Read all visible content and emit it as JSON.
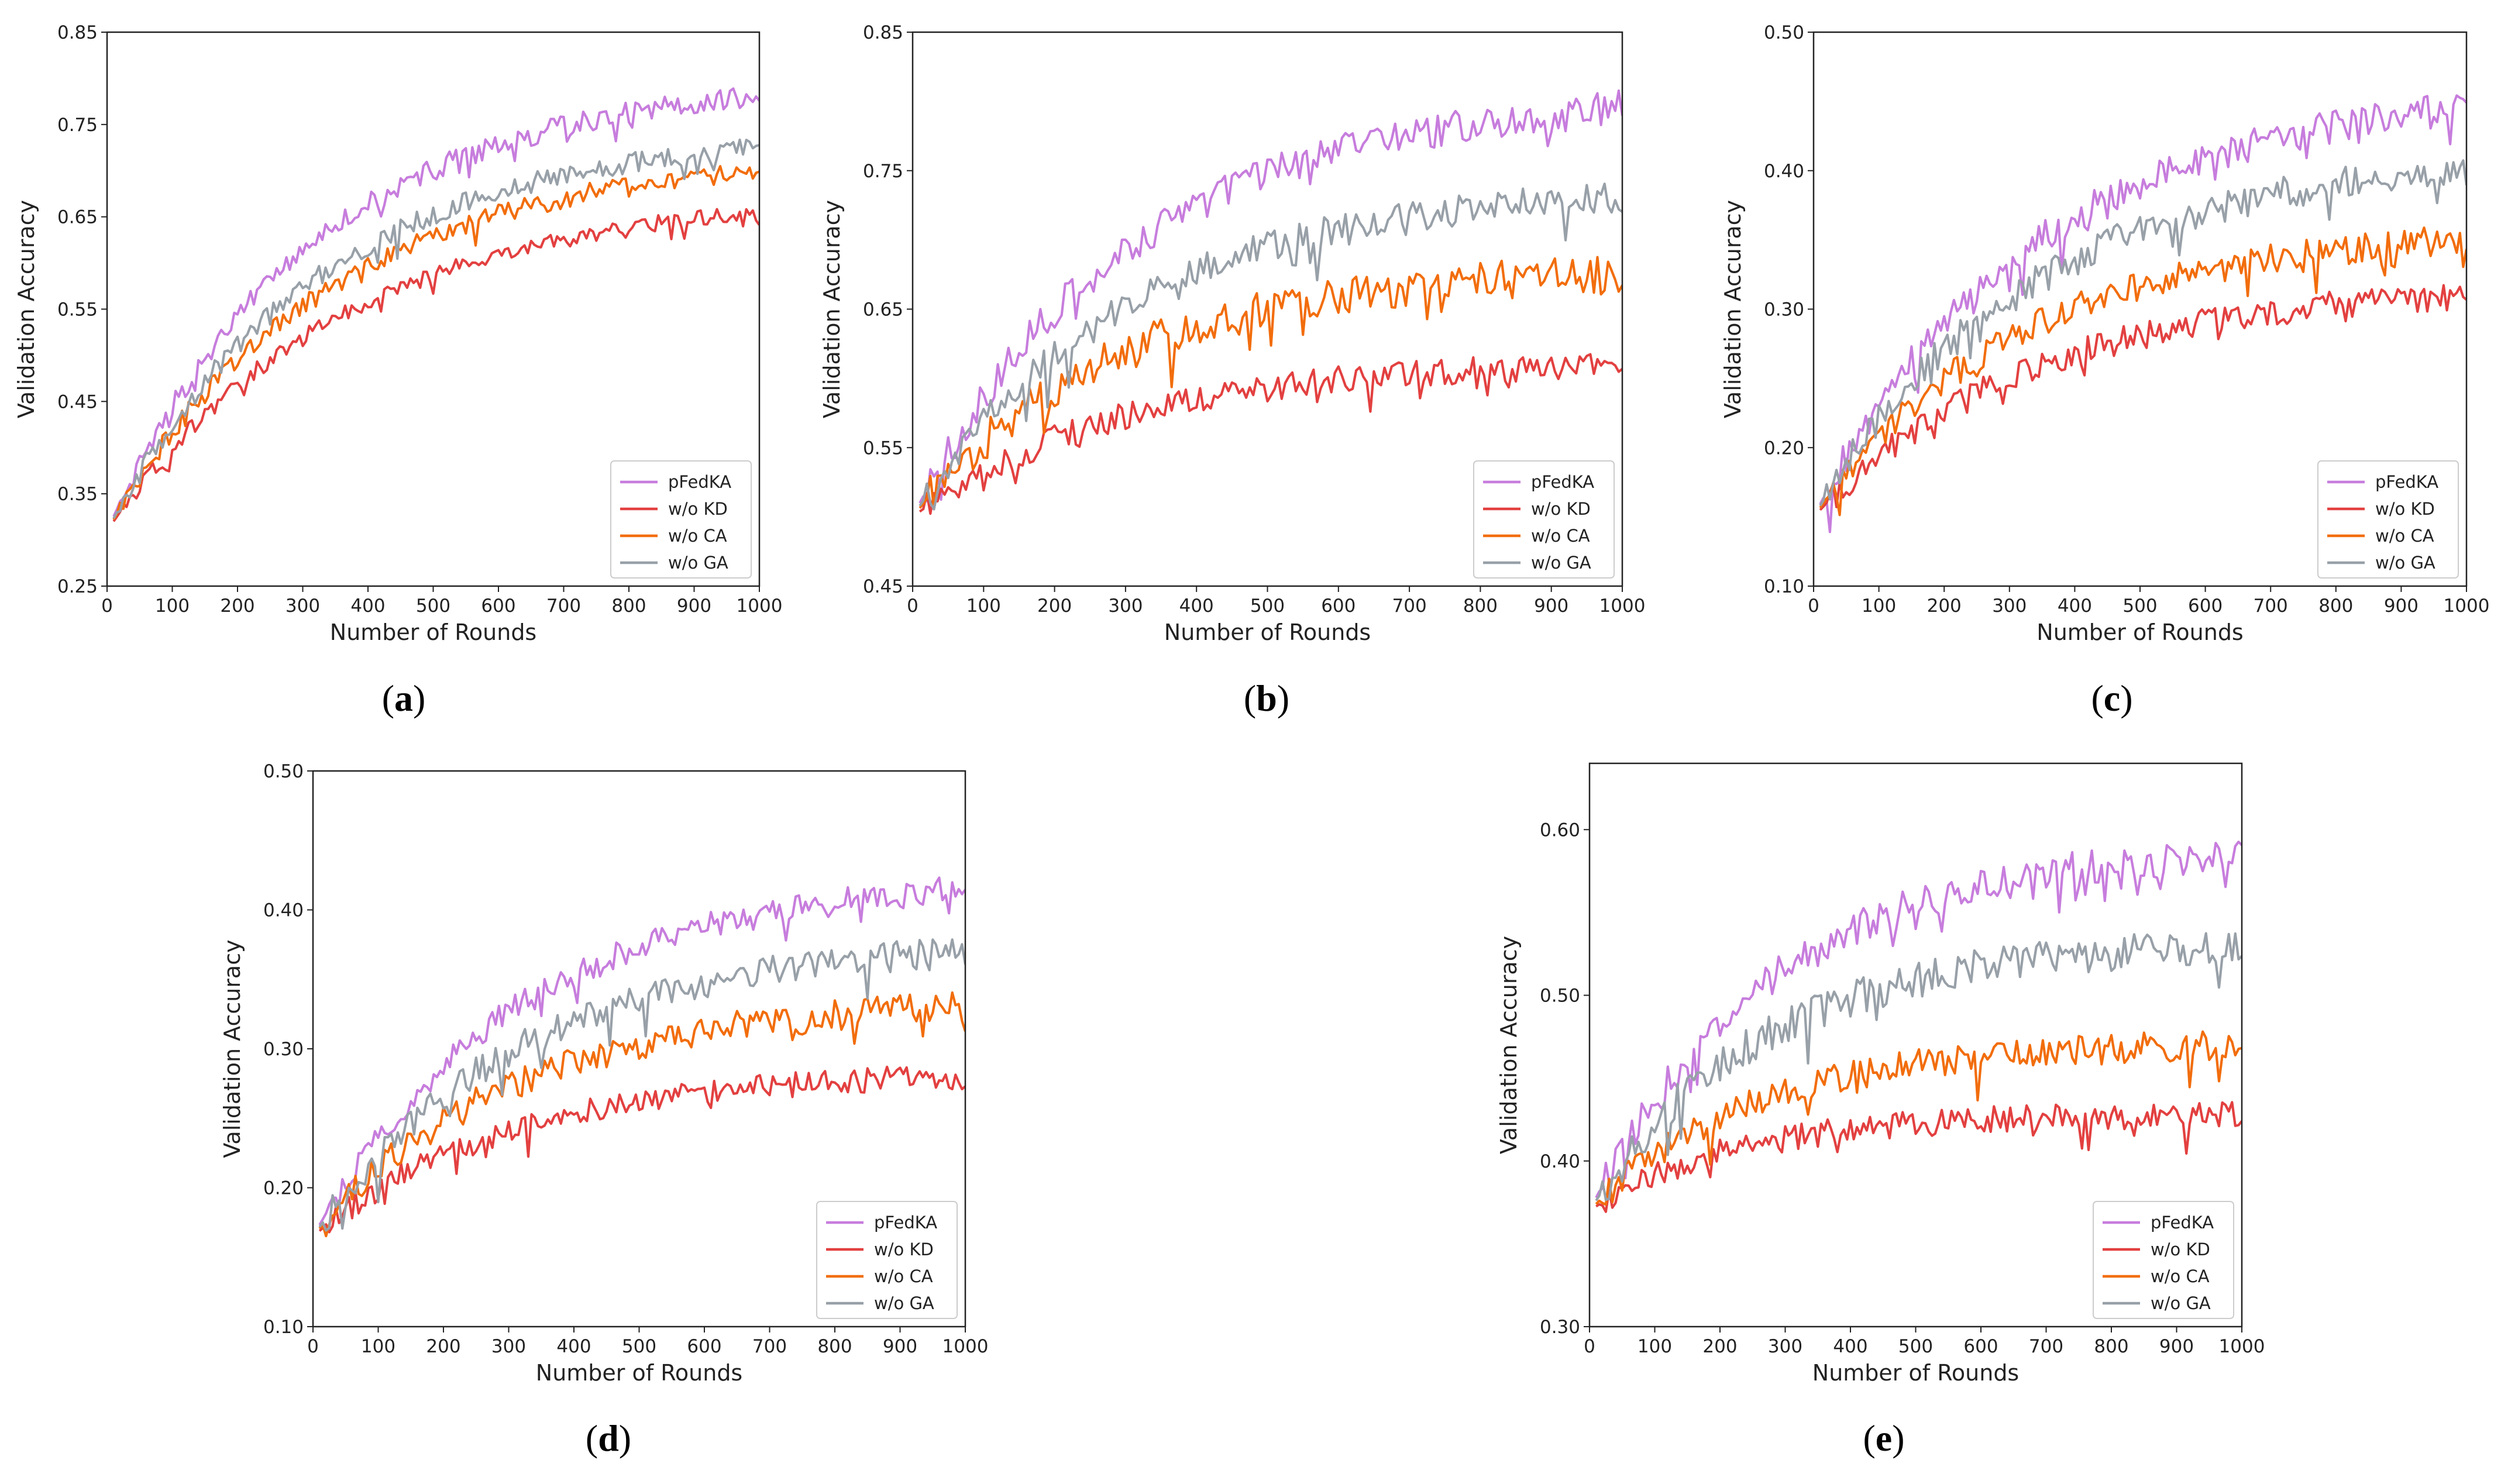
{
  "figure": {
    "panel_count": 5
  },
  "colors": {
    "pFedKA": "#c77ddd",
    "w/o KD": "#e34040",
    "w/o CA": "#f26d0c",
    "w/o GA": "#98a0a8"
  },
  "chart_data": [
    {
      "panel": "a",
      "caption_letter": "a",
      "type": "line",
      "xlabel": "Number of Rounds",
      "ylabel": "Validation Accuracy",
      "xlim": [
        0,
        1000
      ],
      "ylim": [
        0.25,
        0.85
      ],
      "xticks": [
        0,
        100,
        200,
        300,
        400,
        500,
        600,
        700,
        800,
        900,
        1000
      ],
      "yticks": [
        "0.25",
        "0.35",
        "0.45",
        "0.55",
        "0.65",
        "0.75",
        "0.85"
      ],
      "legend": "lower-right",
      "series": [
        {
          "name": "pFedKA",
          "start": 0.31,
          "end": 0.78,
          "k": 3.2,
          "noise": 0.012
        },
        {
          "name": "w/o KD",
          "start": 0.31,
          "end": 0.655,
          "k": 2.8,
          "noise": 0.009
        },
        {
          "name": "w/o CA",
          "start": 0.31,
          "end": 0.7,
          "k": 3.0,
          "noise": 0.011
        },
        {
          "name": "w/o GA",
          "start": 0.31,
          "end": 0.725,
          "k": 3.1,
          "noise": 0.011
        }
      ]
    },
    {
      "panel": "b",
      "caption_letter": "b",
      "type": "line",
      "xlabel": "Number of Rounds",
      "ylabel": "Validation Accuracy",
      "xlim": [
        0,
        1000
      ],
      "ylim": [
        0.45,
        0.85
      ],
      "xticks": [
        0,
        100,
        200,
        300,
        400,
        500,
        600,
        700,
        800,
        900,
        1000
      ],
      "yticks": [
        "0.45",
        "0.55",
        "0.65",
        "0.75",
        "0.85"
      ],
      "legend": "lower-right",
      "series": [
        {
          "name": "pFedKA",
          "start": 0.5,
          "end": 0.795,
          "k": 3.3,
          "noise": 0.013
        },
        {
          "name": "w/o KD",
          "start": 0.5,
          "end": 0.61,
          "k": 3.4,
          "noise": 0.01
        },
        {
          "name": "w/o CA",
          "start": 0.5,
          "end": 0.675,
          "k": 3.6,
          "noise": 0.014
        },
        {
          "name": "w/o GA",
          "start": 0.5,
          "end": 0.73,
          "k": 3.4,
          "noise": 0.012
        }
      ]
    },
    {
      "panel": "c",
      "caption_letter": "c",
      "type": "line",
      "xlabel": "Number of Rounds",
      "ylabel": "Validation Accuracy",
      "xlim": [
        0,
        1000
      ],
      "ylim": [
        0.1,
        0.5
      ],
      "xticks": [
        0,
        100,
        200,
        300,
        400,
        500,
        600,
        700,
        800,
        900,
        1000
      ],
      "yticks": [
        "0.10",
        "0.20",
        "0.30",
        "0.40",
        "0.50"
      ],
      "legend": "lower-right",
      "series": [
        {
          "name": "pFedKA",
          "start": 0.15,
          "end": 0.445,
          "k": 3.0,
          "noise": 0.012
        },
        {
          "name": "w/o KD",
          "start": 0.15,
          "end": 0.31,
          "k": 3.0,
          "noise": 0.01
        },
        {
          "name": "w/o CA",
          "start": 0.15,
          "end": 0.35,
          "k": 3.2,
          "noise": 0.011
        },
        {
          "name": "w/o GA",
          "start": 0.15,
          "end": 0.4,
          "k": 3.1,
          "noise": 0.012
        }
      ]
    },
    {
      "panel": "d",
      "caption_letter": "d",
      "type": "line",
      "xlabel": "Number of Rounds",
      "ylabel": "Validation Accuracy",
      "xlim": [
        0,
        1000
      ],
      "ylim": [
        0.1,
        0.5
      ],
      "xticks": [
        0,
        100,
        200,
        300,
        400,
        500,
        600,
        700,
        800,
        900,
        1000
      ],
      "yticks": [
        "0.10",
        "0.20",
        "0.30",
        "0.40",
        "0.50"
      ],
      "legend": "lower-right",
      "series": [
        {
          "name": "pFedKA",
          "start": 0.165,
          "end": 0.415,
          "k": 3.2,
          "noise": 0.01
        },
        {
          "name": "w/o KD",
          "start": 0.165,
          "end": 0.28,
          "k": 3.4,
          "noise": 0.009
        },
        {
          "name": "w/o CA",
          "start": 0.165,
          "end": 0.33,
          "k": 3.3,
          "noise": 0.011
        },
        {
          "name": "w/o GA",
          "start": 0.165,
          "end": 0.37,
          "k": 3.2,
          "noise": 0.011
        }
      ]
    },
    {
      "panel": "e",
      "caption_letter": "e",
      "type": "line",
      "xlabel": "Number of Rounds",
      "ylabel": "Validation Accuracy",
      "xlim": [
        0,
        1000
      ],
      "ylim": [
        0.3,
        0.64
      ],
      "xticks": [
        0,
        100,
        200,
        300,
        400,
        500,
        600,
        700,
        800,
        900,
        1000
      ],
      "yticks": [
        "0.30",
        "0.40",
        "0.50",
        "0.60"
      ],
      "legend": "lower-right",
      "series": [
        {
          "name": "pFedKA",
          "start": 0.37,
          "end": 0.585,
          "k": 3.6,
          "noise": 0.011
        },
        {
          "name": "w/o KD",
          "start": 0.37,
          "end": 0.428,
          "k": 4.5,
          "noise": 0.008
        },
        {
          "name": "w/o CA",
          "start": 0.37,
          "end": 0.47,
          "k": 4.0,
          "noise": 0.009
        },
        {
          "name": "w/o GA",
          "start": 0.37,
          "end": 0.53,
          "k": 3.8,
          "noise": 0.011
        }
      ]
    }
  ]
}
